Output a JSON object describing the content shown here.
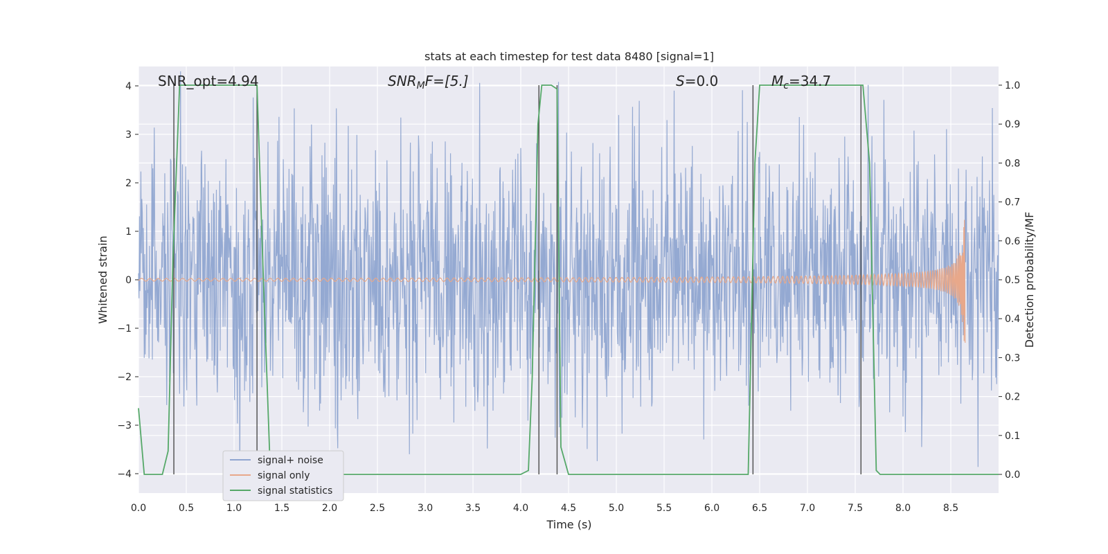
{
  "chart_data": {
    "type": "line",
    "title": "stats at each timestep for test data 8480 [signal=1]",
    "xlabel": "Time (s)",
    "ylabel": "Whitened strain",
    "y2label": "Detection probability/MF",
    "xlim": [
      0,
      9
    ],
    "ylim": [
      -4.4,
      4.4
    ],
    "y2lim": [
      -0.048,
      1.048
    ],
    "xticks": [
      "0.0",
      "0.5",
      "1.0",
      "1.5",
      "2.0",
      "2.5",
      "3.0",
      "3.5",
      "4.0",
      "4.5",
      "5.0",
      "5.5",
      "6.0",
      "6.5",
      "7.0",
      "7.5",
      "8.0",
      "8.5"
    ],
    "xtick_values": [
      0,
      0.5,
      1,
      1.5,
      2,
      2.5,
      3,
      3.5,
      4,
      4.5,
      5,
      5.5,
      6,
      6.5,
      7,
      7.5,
      8,
      8.5
    ],
    "yticks": [
      "−4",
      "−3",
      "−2",
      "−1",
      "0",
      "1",
      "2",
      "3",
      "4"
    ],
    "ytick_values": [
      -4,
      -3,
      -2,
      -1,
      0,
      1,
      2,
      3,
      4
    ],
    "y2ticks": [
      "0.0",
      "0.1",
      "0.2",
      "0.3",
      "0.4",
      "0.5",
      "0.6",
      "0.7",
      "0.8",
      "0.9",
      "1.0"
    ],
    "y2tick_values": [
      0,
      0.1,
      0.2,
      0.3,
      0.4,
      0.5,
      0.6,
      0.7,
      0.8,
      0.9,
      1.0
    ],
    "grid": true,
    "legend_position": "lower-left",
    "annotations": {
      "snr_opt": "SNR_opt=4.94",
      "snr_mf": "SNR",
      "snr_mf_sub": "M",
      "snr_mf_rest": "F=[5.]",
      "s_stat": "S",
      "s_stat_rest": "=0.0",
      "mc": "M",
      "mc_sub": "c",
      "mc_rest": "=34.7"
    },
    "series": [
      {
        "name": "signal+ noise",
        "color": "#8fa5d0",
        "noise_sigma": 1.0,
        "noise_samples": 1800,
        "range": [
          0,
          9
        ]
      },
      {
        "name": "signal only",
        "color": "#e8a88a",
        "chirp_end": 8.65,
        "chirp_peak_amplitude": 1.3,
        "range": [
          0,
          8.65
        ]
      },
      {
        "name": "signal statistics",
        "color": "#55a868",
        "axis": "right",
        "x": [
          0.0,
          0.06,
          0.1,
          0.25,
          0.31,
          0.36,
          0.43,
          0.5,
          1.0,
          1.24,
          1.3,
          1.38,
          1.5,
          2.0,
          3.0,
          4.0,
          4.08,
          4.12,
          4.18,
          4.22,
          4.26,
          4.32,
          4.38,
          4.42,
          4.5,
          5.0,
          6.0,
          6.38,
          6.45,
          6.5,
          7.0,
          7.5,
          7.58,
          7.65,
          7.72,
          7.76,
          8.0,
          8.5,
          9.0
        ],
        "y": [
          0.17,
          0.0,
          0.0,
          0.0,
          0.06,
          0.55,
          1.0,
          1.0,
          1.0,
          1.0,
          0.55,
          0.0,
          0.0,
          0.0,
          0.0,
          0.0,
          0.01,
          0.25,
          0.9,
          1.0,
          1.0,
          1.0,
          0.99,
          0.07,
          0.0,
          0.0,
          0.0,
          0.0,
          0.8,
          1.0,
          1.0,
          1.0,
          1.0,
          0.8,
          0.01,
          0.0,
          0.0,
          0.0,
          0.0
        ]
      }
    ],
    "event_markers": {
      "color": "#555555",
      "x": [
        0.37,
        1.24,
        4.19,
        4.38,
        6.43,
        7.56
      ]
    }
  }
}
